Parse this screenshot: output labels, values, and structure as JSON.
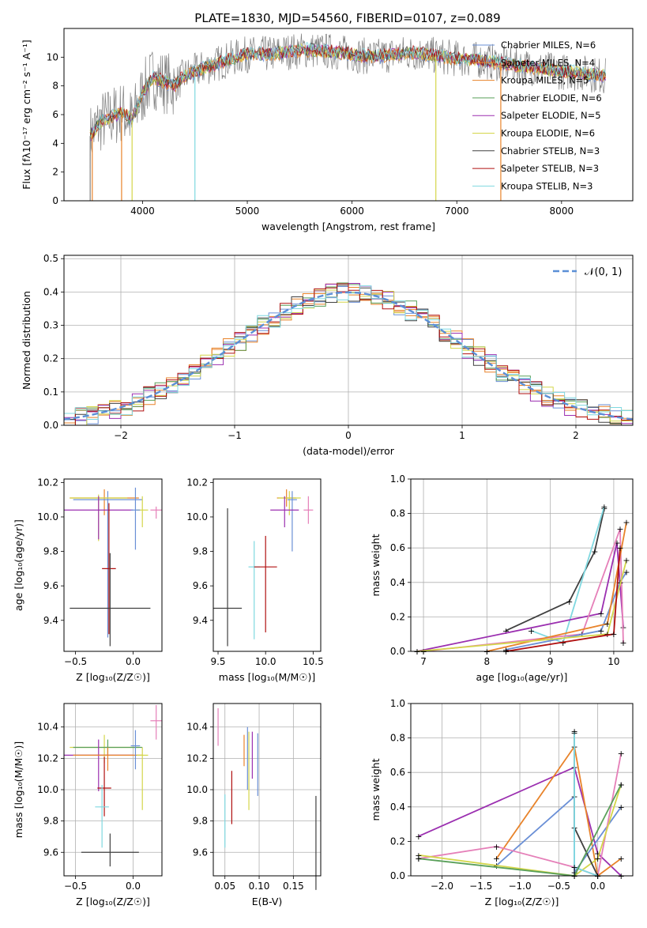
{
  "colors": {
    "chabrier_miles": "#6a8fd6",
    "salpeter_miles": "#e8832a",
    "kroupa_miles": "#e8832a",
    "chabrier_elodie": "#5aa05a",
    "salpeter_elodie": "#9b2fb0",
    "kroupa_elodie": "#d4d64a",
    "chabrier_stelib": "#404040",
    "salpeter_stelib": "#b01010",
    "kroupa_stelib": "#7fd8e0",
    "pink": "#e57fb8",
    "obs": "#808080",
    "normal": "#5b8fd6"
  },
  "chart_data": [
    {
      "type": "line",
      "title": "PLATE=1830, MJD=54560, FIBERID=0107, z=0.089",
      "xlabel": "wavelength [Angstrom, rest frame]",
      "ylabel": "Flux [f_λ10^-17 erg cm^-2 s^-1 A^-1]",
      "xlim": [
        3250,
        8680
      ],
      "ylim": [
        0,
        12
      ],
      "xticks": [
        4000,
        5000,
        6000,
        7000,
        8000
      ],
      "yticks": [
        0,
        2,
        4,
        6,
        8,
        10
      ],
      "legend_position": "upper-right",
      "legend": [
        "Chabrier MILES, N_SSP=6",
        "Salpeter MILES, N_SSP=4",
        "Kroupa MILES, N_SSP=5",
        "Chabrier ELODIE, N_SSP=6",
        "Salpeter ELODIE, N_SSP=5",
        "Kroupa ELODIE, N_SSP=6",
        "Chabrier STELIB, N_SSP=3",
        "Salpeter STELIB, N_SSP=3",
        "Kroupa STELIB, N_SSP=3"
      ],
      "spectrum_x": [
        3500,
        3600,
        3700,
        3800,
        3900,
        4000,
        4100,
        4200,
        4300,
        4400,
        4500,
        4600,
        4700,
        4800,
        4900,
        5000,
        5200,
        5400,
        5600,
        5800,
        6000,
        6200,
        6400,
        6600,
        6800,
        7000,
        7200,
        7400,
        7600,
        7800,
        8000,
        8200,
        8400
      ],
      "spectrum_y": [
        4.5,
        5.5,
        5.8,
        6.2,
        5.6,
        7.5,
        8.6,
        8.3,
        8.0,
        8.7,
        9.0,
        9.3,
        9.5,
        9.8,
        10.0,
        10.2,
        10.2,
        10.4,
        10.5,
        10.4,
        10.2,
        10.0,
        10.2,
        10.3,
        10.1,
        9.9,
        9.8,
        9.6,
        9.4,
        9.2,
        9.0,
        8.9,
        8.7
      ]
    },
    {
      "type": "line",
      "xlabel": "(data-model)/error",
      "ylabel": "Normed distribution",
      "xlim": [
        -2.5,
        2.5
      ],
      "ylim": [
        0,
        0.51
      ],
      "xticks": [
        -2,
        -1,
        0,
        1,
        2
      ],
      "yticks": [
        0.0,
        0.1,
        0.2,
        0.3,
        0.4,
        0.5
      ],
      "legend": [
        "𝒩(0, 1)"
      ],
      "grid": true
    },
    {
      "type": "scatter",
      "xlabel": "Z [log10(Z/Z☉)]",
      "ylabel": "age [log10(age/yr)]",
      "xlim": [
        -0.6,
        0.25
      ],
      "ylim": [
        9.22,
        10.22
      ],
      "xticks": [
        -0.5,
        0.0
      ],
      "yticks": [
        9.4,
        9.6,
        9.8,
        10.0,
        10.2
      ],
      "points": [
        {
          "x": -0.25,
          "y": 10.11,
          "xerr": 0.3,
          "yerr_lo": 0.1,
          "yerr_hi": 0.05,
          "color": "salpeter_miles"
        },
        {
          "x": -0.22,
          "y": 10.1,
          "xerr": 0.3,
          "yerr_lo": 0.8,
          "yerr_hi": 0.05,
          "color": "chabrier_miles"
        },
        {
          "x": -0.3,
          "y": 10.11,
          "xerr": 0.25,
          "yerr_lo": 0.25,
          "yerr_hi": 0.02,
          "color": "kroupa_elodie"
        },
        {
          "x": -0.3,
          "y": 10.04,
          "xerr": 0.3,
          "yerr_lo": 0.17,
          "yerr_hi": 0.08,
          "color": "salpeter_elodie"
        },
        {
          "x": 0.08,
          "y": 10.04,
          "xerr": 0.05,
          "yerr_lo": 0.1,
          "yerr_hi": 0.08,
          "color": "kroupa_elodie"
        },
        {
          "x": 0.2,
          "y": 10.04,
          "xerr": 0.05,
          "yerr_lo": 0.05,
          "yerr_hi": 0.02,
          "color": "pink"
        },
        {
          "x": 0.02,
          "y": 10.04,
          "xerr": 0.04,
          "yerr_lo": 0.23,
          "yerr_hi": 0.13,
          "color": "chabrier_miles"
        },
        {
          "x": -0.21,
          "y": 9.7,
          "xerr": 0.06,
          "yerr_lo": 0.38,
          "yerr_hi": 0.38,
          "color": "salpeter_stelib"
        },
        {
          "x": -0.2,
          "y": 9.47,
          "xerr": 0.35,
          "yerr_lo": 0.22,
          "yerr_hi": 0.32,
          "color": "chabrier_stelib"
        }
      ]
    },
    {
      "type": "scatter",
      "xlabel": "mass [log10(M/M☉)]",
      "xlim": [
        9.45,
        10.58
      ],
      "ylim": [
        9.22,
        10.22
      ],
      "xticks": [
        9.5,
        10.0,
        10.5
      ],
      "yticks": [
        9.4,
        9.6,
        9.8,
        10.0,
        10.2
      ],
      "points": [
        {
          "x": 10.22,
          "y": 10.11,
          "xerr": 0.1,
          "yerr_lo": 0.05,
          "yerr_hi": 0.05,
          "color": "salpeter_miles"
        },
        {
          "x": 10.25,
          "y": 10.11,
          "xerr": 0.12,
          "yerr_lo": 0.1,
          "yerr_hi": 0.04,
          "color": "kroupa_elodie"
        },
        {
          "x": 10.28,
          "y": 10.1,
          "xerr": 0.05,
          "yerr_lo": 0.3,
          "yerr_hi": 0.05,
          "color": "chabrier_miles"
        },
        {
          "x": 10.2,
          "y": 10.04,
          "xerr": 0.15,
          "yerr_lo": 0.1,
          "yerr_hi": 0.08,
          "color": "salpeter_elodie"
        },
        {
          "x": 10.45,
          "y": 10.04,
          "xerr": 0.05,
          "yerr_lo": 0.08,
          "yerr_hi": 0.08,
          "color": "pink"
        },
        {
          "x": 9.88,
          "y": 9.71,
          "xerr": 0.06,
          "yerr_lo": 0.42,
          "yerr_hi": 0.15,
          "color": "kroupa_stelib"
        },
        {
          "x": 10.0,
          "y": 9.71,
          "xerr": 0.12,
          "yerr_lo": 0.38,
          "yerr_hi": 0.18,
          "color": "salpeter_stelib"
        },
        {
          "x": 9.6,
          "y": 9.47,
          "xerr": 0.15,
          "yerr_lo": 0.22,
          "yerr_hi": 0.58,
          "color": "chabrier_stelib"
        }
      ]
    },
    {
      "type": "line",
      "xlabel": "age [log10(age/yr)]",
      "ylabel": "mass weight",
      "xlim": [
        6.8,
        10.3
      ],
      "ylim": [
        0,
        1.0
      ],
      "xticks": [
        7,
        8,
        9,
        10
      ],
      "yticks": [
        0.0,
        0.2,
        0.4,
        0.6,
        0.8,
        1.0
      ],
      "grid": true
    },
    {
      "type": "scatter",
      "xlabel": "Z [log10(Z/Z☉)]",
      "ylabel": "mass [log10(M/M☉)]",
      "xlim": [
        -0.6,
        0.25
      ],
      "ylim": [
        9.45,
        10.55
      ],
      "xticks": [
        -0.5,
        0.0
      ],
      "yticks": [
        9.6,
        9.8,
        10.0,
        10.2,
        10.4
      ],
      "grid": true
    },
    {
      "type": "scatter",
      "xlabel": "E(B-V)",
      "xlim": [
        0.033,
        0.19
      ],
      "ylim": [
        9.45,
        10.55
      ],
      "xticks": [
        0.05,
        0.1,
        0.15
      ],
      "yticks": [
        9.6,
        9.8,
        10.0,
        10.2,
        10.4
      ],
      "grid": true
    },
    {
      "type": "line",
      "xlabel": "Z [log10(Z/Z☉)]",
      "ylabel": "mass weight",
      "xlim": [
        -2.4,
        0.45
      ],
      "ylim": [
        0,
        1.0
      ],
      "xticks": [
        -2.0,
        -1.5,
        -1.0,
        -0.5,
        0.0
      ],
      "yticks": [
        0.0,
        0.2,
        0.4,
        0.6,
        0.8,
        1.0
      ],
      "grid": true
    }
  ],
  "text": {
    "title": "PLATE=1830, MJD=54560, FIBERID=0107, z=0.089",
    "legend_normal": "𝒩(0, 1)"
  }
}
